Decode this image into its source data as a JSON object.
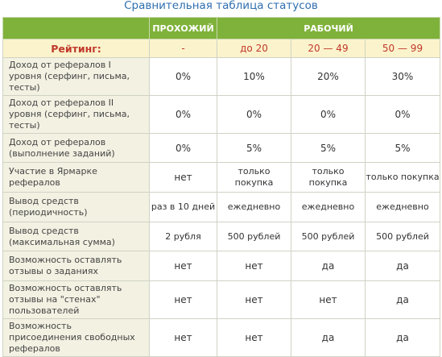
{
  "title": "Сравнительная таблица статусов",
  "columns": {
    "c1": "ПРОХОЖИЙ",
    "work": "РАБОЧИЙ"
  },
  "rating": {
    "label": "Рейтинг:",
    "values": [
      "-",
      "до 20",
      "20 — 49",
      "50 — 99"
    ]
  },
  "rows": [
    {
      "label": "Доход от рефералов I уровня (серфинг, письма, тесты)",
      "values": [
        "0%",
        "10%",
        "20%",
        "30%"
      ]
    },
    {
      "label": "Доход от рефералов II уровня (серфинг, письма, тесты)",
      "values": [
        "0%",
        "0%",
        "0%",
        "0%"
      ]
    },
    {
      "label": "Доход от рефералов (выполнение заданий)",
      "values": [
        "0%",
        "5%",
        "5%",
        "5%"
      ]
    },
    {
      "label": "Участие в Ярмарке рефералов",
      "values": [
        "нет",
        "только покупка",
        "только покупка",
        "только покупка"
      ]
    },
    {
      "label": "Вывод средств (периодичность)",
      "values": [
        "раз в 10 дней",
        "ежедневно",
        "ежедневно",
        "ежедневно"
      ]
    },
    {
      "label": "Вывод средств (максимальная сумма)",
      "values": [
        "2 рубля",
        "500 рублей",
        "500 рублей",
        "500 рублей"
      ]
    },
    {
      "label": "Возможность оставлять отзывы о заданиях",
      "values": [
        "нет",
        "нет",
        "да",
        "да"
      ]
    },
    {
      "label": "Возможность оставлять отзывы на \"стенах\" пользователей",
      "values": [
        "нет",
        "нет",
        "нет",
        "да"
      ]
    },
    {
      "label": "Возможность присоединения свободных рефералов",
      "values": [
        "нет",
        "нет",
        "да",
        "да"
      ]
    }
  ]
}
